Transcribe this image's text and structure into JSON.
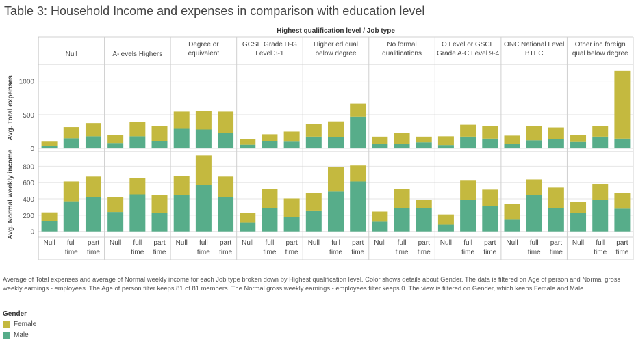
{
  "title": "Table 3: Household Income and expenses in comparison with education level",
  "caption": "Average of Total expenses and average of Normal weekly income for each Job type broken down by Highest qualification level.  Color shows details about Gender. The data is filtered on Age of person and Normal gross weekly earnings - employees. The Age of person filter keeps 81 of 81 members. The Normal gross weekly earnings - employees filter keeps 0. The view is filtered on Gender, which keeps Female and Male.",
  "legend": {
    "title": "Gender",
    "items": [
      {
        "label": "Female",
        "color": "#c4b93f"
      },
      {
        "label": "Male",
        "color": "#57ad8a"
      }
    ]
  },
  "chart_data": {
    "type": "bar",
    "stacked": true,
    "header_title": "Highest qualification level  /  Job type",
    "groups": [
      {
        "lines": [
          "Null"
        ]
      },
      {
        "lines": [
          "A-levels Highers"
        ]
      },
      {
        "lines": [
          "Degree or",
          "equivalent"
        ]
      },
      {
        "lines": [
          "GCSE Grade D-G",
          "Level 3-1"
        ]
      },
      {
        "lines": [
          "Higher ed qual",
          "below degree"
        ]
      },
      {
        "lines": [
          "No formal",
          "qualifications"
        ]
      },
      {
        "lines": [
          "O Level or GSCE",
          "Grade A-C  Level 9-4"
        ]
      },
      {
        "lines": [
          "ONC National Level",
          "BTEC"
        ]
      },
      {
        "lines": [
          "Other inc foreign",
          "qual below degree"
        ]
      }
    ],
    "job_types": [
      {
        "lines": [
          "Null"
        ]
      },
      {
        "lines": [
          "full",
          "time"
        ]
      },
      {
        "lines": [
          "part",
          "time"
        ]
      }
    ],
    "series_names": [
      "Male",
      "Female"
    ],
    "series_colors": [
      "#57ad8a",
      "#c4b93f"
    ],
    "panels": [
      {
        "ylabel": "Avg. Total expenses",
        "ylim": [
          -50,
          1250
        ],
        "ticks": [
          0,
          500,
          1000
        ],
        "male": [
          [
            40,
            150,
            180
          ],
          [
            80,
            180,
            110
          ],
          [
            290,
            280,
            230
          ],
          [
            55,
            105,
            100
          ],
          [
            175,
            170,
            470
          ],
          [
            70,
            70,
            90
          ],
          [
            50,
            175,
            145
          ],
          [
            65,
            120,
            140
          ],
          [
            95,
            175,
            145
          ]
        ],
        "total": [
          [
            100,
            315,
            375
          ],
          [
            200,
            395,
            335
          ],
          [
            545,
            555,
            545
          ],
          [
            140,
            210,
            250
          ],
          [
            365,
            400,
            665
          ],
          [
            175,
            225,
            175
          ],
          [
            180,
            350,
            335
          ],
          [
            190,
            335,
            310
          ],
          [
            195,
            335,
            1150
          ]
        ]
      },
      {
        "ylabel": "Avg. Normal weekly income",
        "ylim": [
          -70,
          980
        ],
        "ticks": [
          0,
          200,
          400,
          600,
          800
        ],
        "male": [
          [
            130,
            370,
            425
          ],
          [
            240,
            455,
            230
          ],
          [
            450,
            575,
            420
          ],
          [
            110,
            285,
            180
          ],
          [
            250,
            490,
            615
          ],
          [
            120,
            290,
            285
          ],
          [
            85,
            390,
            315
          ],
          [
            145,
            450,
            290
          ],
          [
            230,
            385,
            280
          ]
        ],
        "total": [
          [
            235,
            615,
            675
          ],
          [
            425,
            655,
            445
          ],
          [
            680,
            935,
            675
          ],
          [
            225,
            525,
            405
          ],
          [
            475,
            795,
            810
          ],
          [
            245,
            525,
            390
          ],
          [
            210,
            625,
            515
          ],
          [
            335,
            640,
            540
          ],
          [
            365,
            585,
            475
          ]
        ]
      }
    ]
  }
}
